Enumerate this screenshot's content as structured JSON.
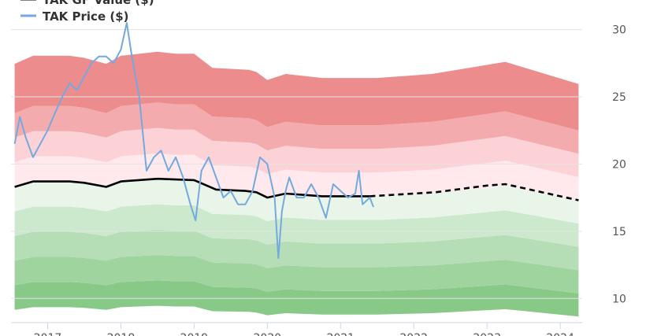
{
  "chart_data": {
    "type": "line",
    "title": "",
    "xlabel": "",
    "ylabel": "",
    "x_ticks": [
      "2017",
      "2018",
      "2019",
      "2020",
      "2021",
      "2022",
      "2023",
      "2024"
    ],
    "y_ticks": [
      10,
      15,
      20,
      25,
      30
    ],
    "xlim": [
      2016.5,
      2024.3
    ],
    "ylim": [
      8.2,
      32.2
    ],
    "grid": true,
    "legend_position": "top-left",
    "series": [
      {
        "name": "TAK GF Value ($)",
        "color": "#000000",
        "style": "solid-then-dashed",
        "dashed_from": 2021.4,
        "x": [
          2016.55,
          2016.8,
          2017.0,
          2017.3,
          2017.5,
          2017.8,
          2018.0,
          2018.5,
          2019.0,
          2019.3,
          2019.7,
          2019.85,
          2020.0,
          2020.25,
          2020.5,
          2020.75,
          2021.0,
          2021.4,
          2022.0,
          2022.3,
          2023.0,
          2023.25,
          2024.0,
          2024.25
        ],
        "y": [
          18.3,
          18.7,
          18.7,
          18.7,
          18.6,
          18.3,
          18.7,
          18.9,
          18.8,
          18.1,
          18.0,
          17.9,
          17.5,
          17.8,
          17.7,
          17.6,
          17.6,
          17.6,
          17.8,
          17.9,
          18.4,
          18.5,
          17.6,
          17.3
        ]
      },
      {
        "name": "TAK Price ($)",
        "color": "#74a9e0",
        "style": "solid",
        "x": [
          2016.55,
          2016.62,
          2016.7,
          2016.8,
          2016.9,
          2017.0,
          2017.1,
          2017.2,
          2017.3,
          2017.4,
          2017.5,
          2017.6,
          2017.7,
          2017.8,
          2017.9,
          2018.0,
          2018.08,
          2018.15,
          2018.25,
          2018.35,
          2018.45,
          2018.55,
          2018.65,
          2018.75,
          2018.85,
          2018.95,
          2019.02,
          2019.1,
          2019.2,
          2019.3,
          2019.4,
          2019.5,
          2019.6,
          2019.7,
          2019.8,
          2019.9,
          2020.0,
          2020.1,
          2020.15,
          2020.2,
          2020.25,
          2020.3,
          2020.4,
          2020.5,
          2020.6,
          2020.7,
          2020.8,
          2020.9,
          2021.0,
          2021.1,
          2021.2,
          2021.25,
          2021.3,
          2021.4,
          2021.45
        ],
        "y": [
          21.5,
          23.5,
          22.0,
          20.5,
          21.5,
          22.5,
          23.8,
          25.0,
          26.0,
          25.5,
          26.5,
          27.5,
          28.0,
          28.0,
          27.5,
          28.5,
          30.5,
          28.0,
          25.0,
          19.5,
          20.5,
          21.0,
          19.5,
          20.5,
          19.0,
          17.0,
          15.8,
          19.5,
          20.5,
          19.0,
          17.5,
          18.0,
          17.0,
          17.0,
          18.0,
          20.5,
          20.0,
          17.5,
          13.0,
          16.5,
          18.0,
          19.0,
          17.5,
          17.5,
          18.5,
          17.5,
          16.0,
          18.5,
          18.0,
          17.5,
          17.8,
          19.5,
          17.0,
          17.5,
          16.8
        ]
      }
    ],
    "bands": {
      "x": [
        2016.55,
        2016.8,
        2017.3,
        2017.5,
        2017.8,
        2018.0,
        2018.5,
        2018.75,
        2019.0,
        2019.25,
        2019.75,
        2019.85,
        2020.0,
        2020.25,
        2020.5,
        2020.75,
        2021.0,
        2021.5,
        2022.25,
        2023.25,
        2024.25
      ],
      "base": [
        18.3,
        18.7,
        18.7,
        18.6,
        18.3,
        18.7,
        18.9,
        18.8,
        18.8,
        18.1,
        18.0,
        17.9,
        17.5,
        17.8,
        17.7,
        17.6,
        17.6,
        17.6,
        17.8,
        18.4,
        17.3
      ],
      "multipliers": [
        0.5,
        0.6,
        0.7,
        0.8,
        0.9,
        1.0,
        1.1,
        1.2,
        1.3,
        1.5
      ],
      "colors": [
        "#88c988",
        "#9fd49f",
        "#b6deb6",
        "#cde9cd",
        "#e9f5e9",
        "#ffe9ec",
        "#fdd2d6",
        "#f4abad",
        "#ec8c8c",
        "#f17676"
      ]
    }
  }
}
